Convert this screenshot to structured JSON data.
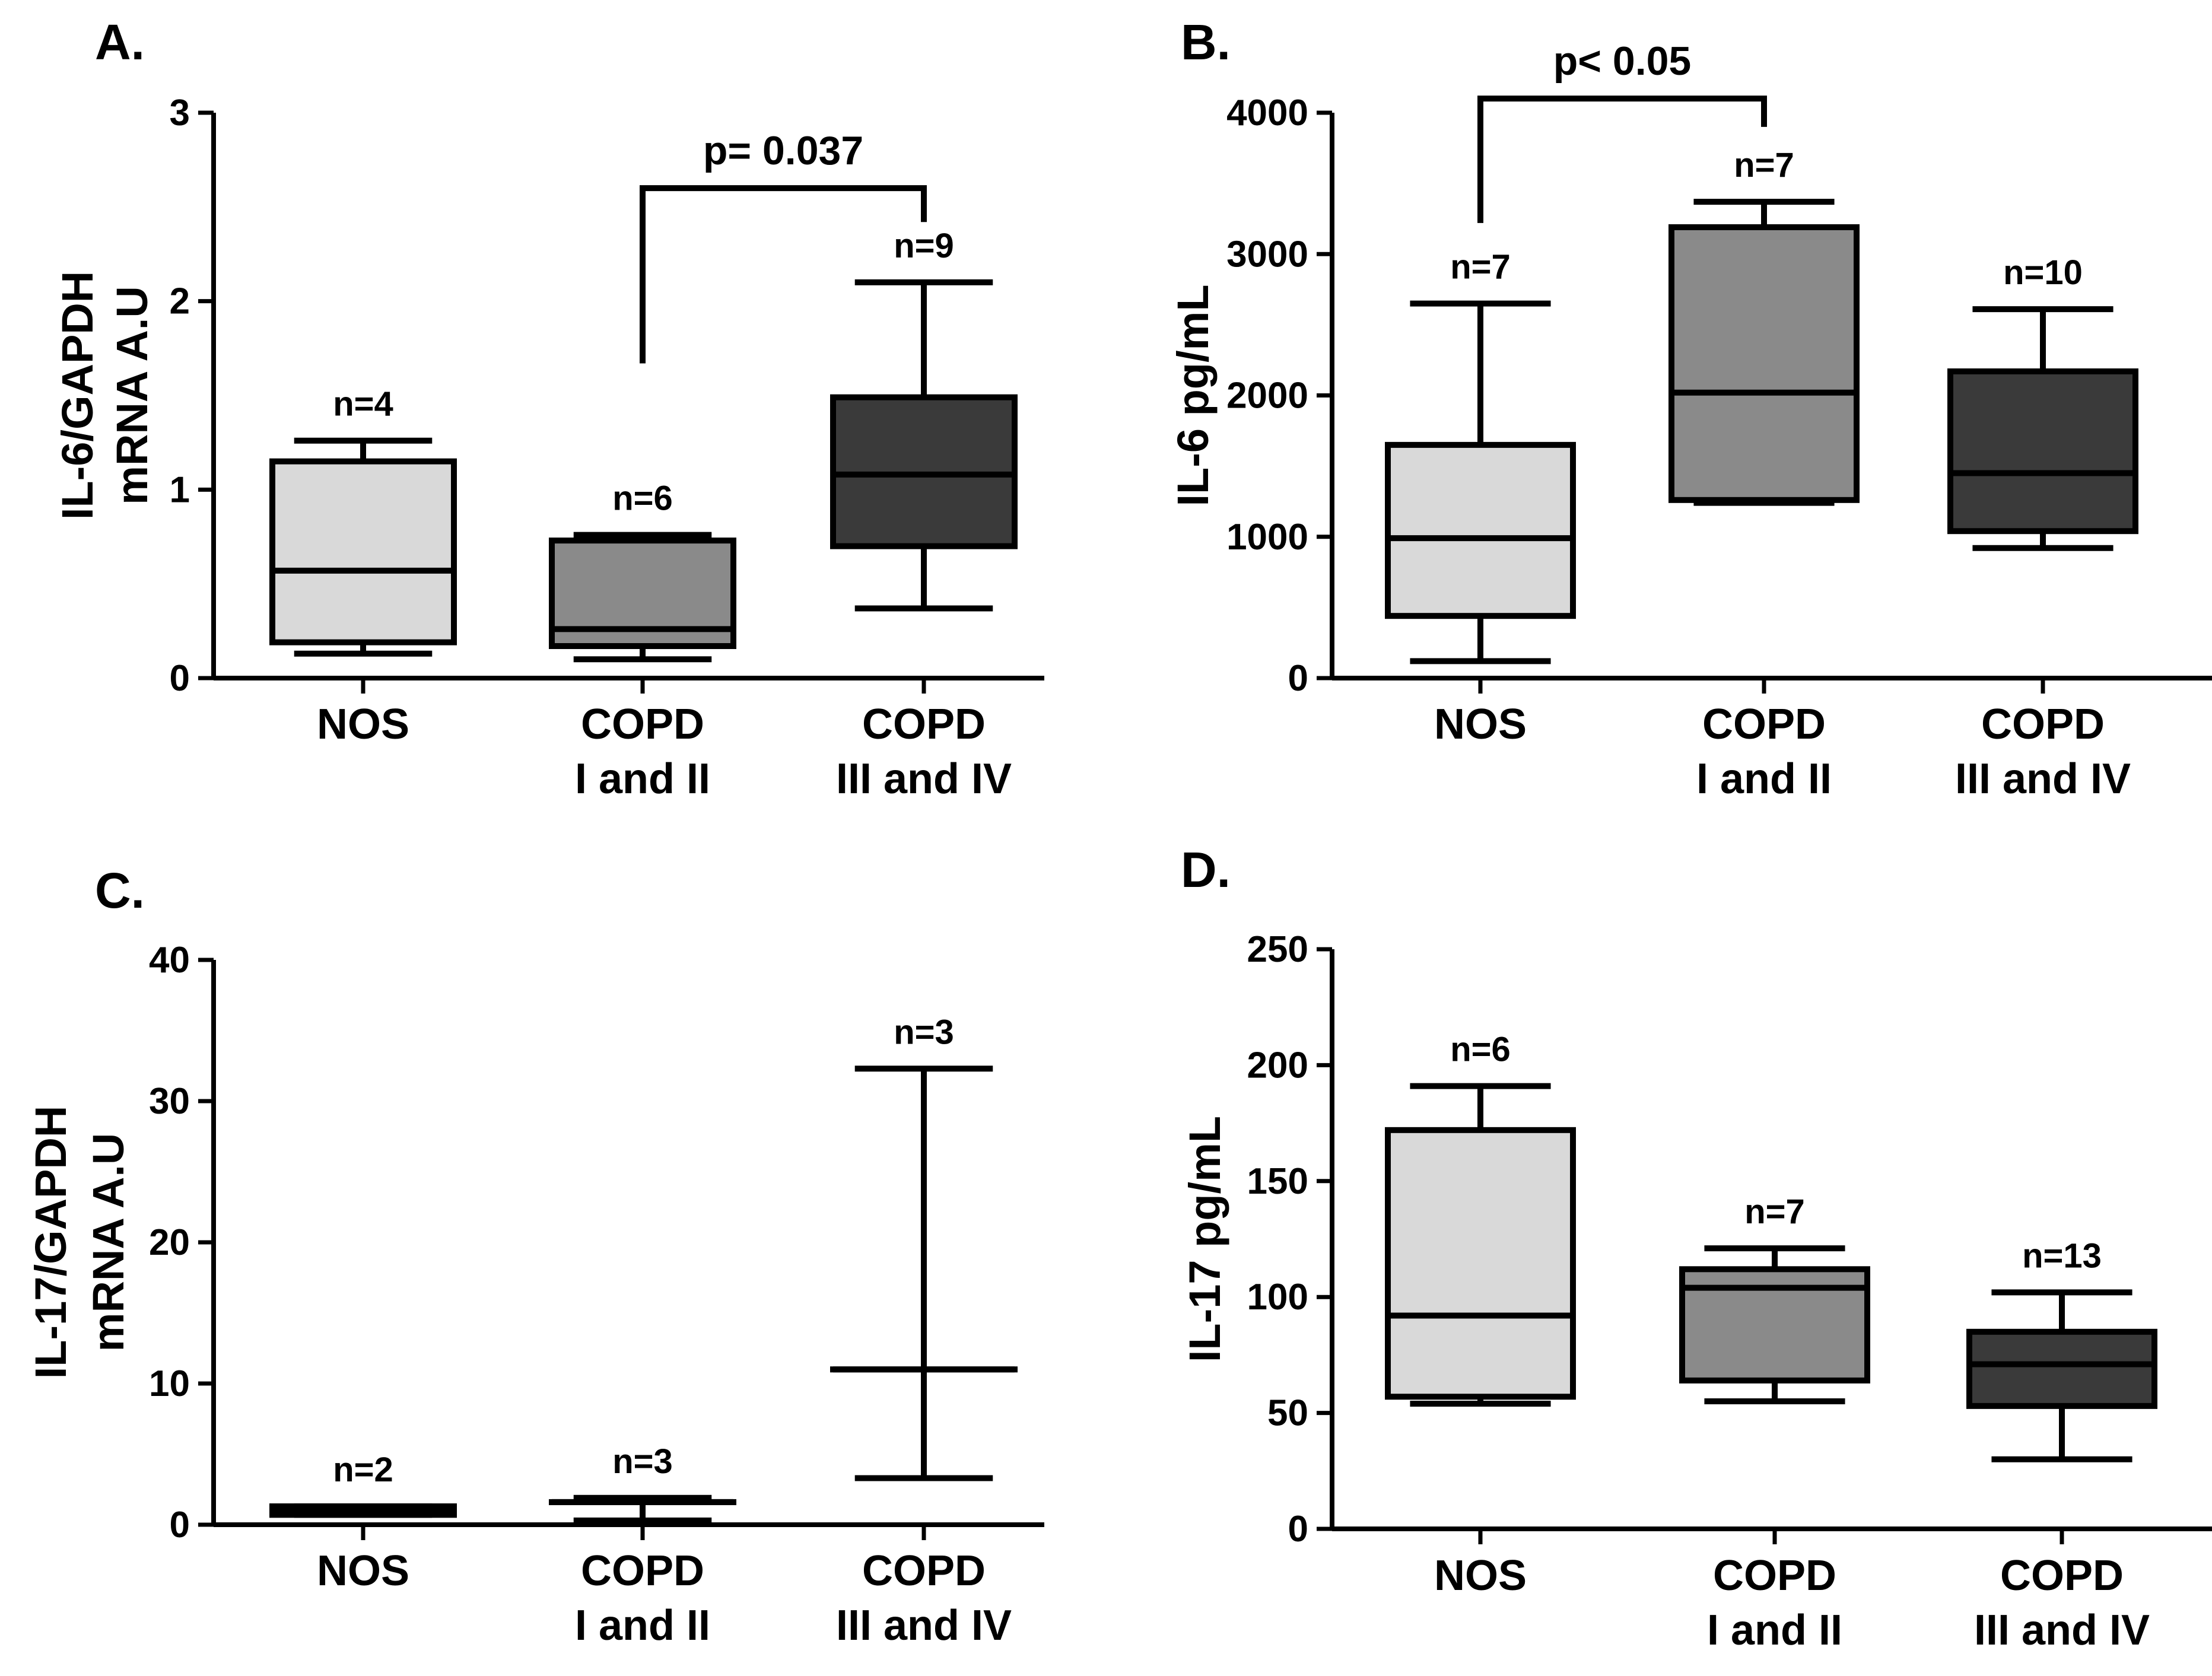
{
  "chart_data": [
    {
      "panel": "A.",
      "type": "box",
      "ylabel_lines": [
        "IL-6/GAPDH",
        "mRNA A.U"
      ],
      "ylim": [
        0,
        3
      ],
      "yticks": [
        0,
        1,
        2,
        3
      ],
      "categories": [
        [
          "NOS"
        ],
        [
          "COPD",
          "I and II"
        ],
        [
          "COPD",
          "III and IV"
        ]
      ],
      "series": [
        {
          "name": "NOS",
          "n": "n=4",
          "min": 0.13,
          "q1": 0.19,
          "median": 0.57,
          "q3": 1.15,
          "max": 1.26,
          "fill": "#d9d9d9"
        },
        {
          "name": "COPD I and II",
          "n": "n=6",
          "min": 0.1,
          "q1": 0.17,
          "median": 0.26,
          "q3": 0.73,
          "max": 0.76,
          "fill": "#8a8a8a"
        },
        {
          "name": "COPD III and IV",
          "n": "n=9",
          "min": 0.37,
          "q1": 0.7,
          "median": 1.08,
          "q3": 1.49,
          "max": 2.1,
          "fill": "#3a3a3a"
        }
      ],
      "bracket": {
        "from": 1,
        "to": 2,
        "text": "p= 0.037",
        "top": 2.6,
        "left_end": 1.67,
        "right_end": 2.42
      }
    },
    {
      "panel": "B.",
      "type": "box",
      "ylabel_lines": [
        "IL-6 pg/mL"
      ],
      "ylim": [
        0,
        4000
      ],
      "yticks": [
        0,
        1000,
        2000,
        3000,
        4000
      ],
      "categories": [
        [
          "NOS"
        ],
        [
          "COPD",
          "I and II"
        ],
        [
          "COPD",
          "III and IV"
        ]
      ],
      "series": [
        {
          "name": "NOS",
          "n": "n=7",
          "min": 120,
          "q1": 440,
          "median": 990,
          "q3": 1650,
          "max": 2650,
          "fill": "#d9d9d9"
        },
        {
          "name": "COPD I and II",
          "n": "n=7",
          "min": 1240,
          "q1": 1260,
          "median": 2020,
          "q3": 3190,
          "max": 3370,
          "fill": "#8a8a8a"
        },
        {
          "name": "COPD III and IV",
          "n": "n=10",
          "min": 920,
          "q1": 1040,
          "median": 1450,
          "q3": 2170,
          "max": 2610,
          "fill": "#3a3a3a"
        }
      ],
      "bracket": {
        "from": 0,
        "to": 1,
        "text": "p< 0.05",
        "top": 4100,
        "left_end": 3220,
        "right_end": 3900
      }
    },
    {
      "panel": "C.",
      "type": "box",
      "ylabel_lines": [
        "IL-17/GAPDH",
        "mRNA A.U"
      ],
      "ylim": [
        0,
        40
      ],
      "yticks": [
        0,
        10,
        20,
        30,
        40
      ],
      "categories": [
        [
          "NOS"
        ],
        [
          "COPD",
          "I and II"
        ],
        [
          "COPD",
          "III and IV"
        ]
      ],
      "series": [
        {
          "name": "NOS",
          "n": "n=2",
          "min": 0.7,
          "q1": 0.7,
          "median": 1.0,
          "q3": 1.3,
          "max": 1.3,
          "fill": "#d9d9d9"
        },
        {
          "name": "COPD I and II",
          "n": "n=3",
          "min": 0.3,
          "q1": 1.6,
          "median": 1.6,
          "q3": 1.6,
          "max": 1.9,
          "fill": "#8a8a8a"
        },
        {
          "name": "COPD III and IV",
          "n": "n=3",
          "min": 3.3,
          "q1": 11.0,
          "median": 11.0,
          "q3": 11.0,
          "max": 32.3,
          "fill": "#3a3a3a"
        }
      ]
    },
    {
      "panel": "D.",
      "type": "box",
      "ylabel_lines": [
        "IL-17 pg/mL"
      ],
      "ylim": [
        0,
        250
      ],
      "yticks": [
        0,
        50,
        100,
        150,
        200,
        250
      ],
      "categories": [
        [
          "NOS"
        ],
        [
          "COPD",
          "I and II"
        ],
        [
          "COPD",
          "III and IV"
        ]
      ],
      "series": [
        {
          "name": "NOS",
          "n": "n=6",
          "min": 54,
          "q1": 57,
          "median": 92,
          "q3": 172,
          "max": 191,
          "fill": "#d9d9d9"
        },
        {
          "name": "COPD I and II",
          "n": "n=7",
          "min": 55,
          "q1": 64,
          "median": 104,
          "q3": 112,
          "max": 121,
          "fill": "#8a8a8a"
        },
        {
          "name": "COPD III and IV",
          "n": "n=13",
          "min": 30,
          "q1": 53,
          "median": 71,
          "q3": 85,
          "max": 102,
          "fill": "#3a3a3a"
        }
      ]
    }
  ]
}
